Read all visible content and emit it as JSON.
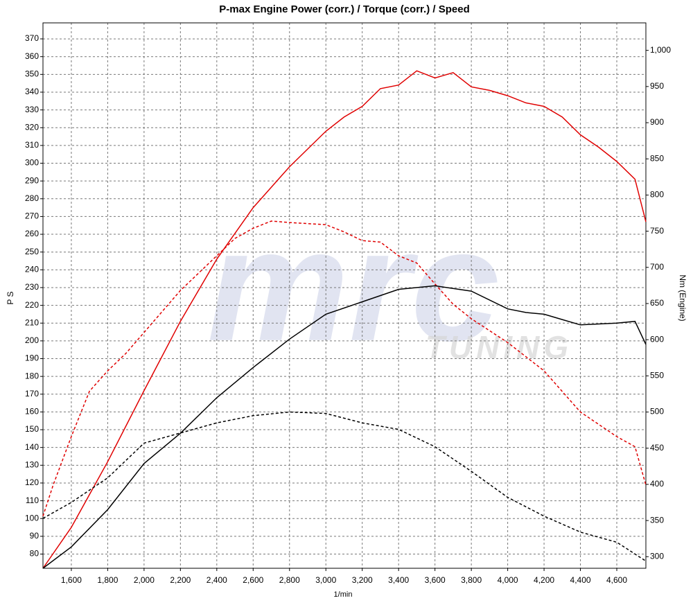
{
  "chart_data": {
    "type": "line",
    "title": "P-max Engine Power (corr.) / Torque (corr.) / Speed",
    "xlabel": "1/min",
    "ylabel": "P S",
    "y2label": "Nm (Engine)",
    "watermark": "mrc",
    "watermark_sub": "TUNING",
    "xlim": [
      1444,
      4760
    ],
    "ylim": [
      72,
      379
    ],
    "y2lim": [
      284,
      1038
    ],
    "xticks": [
      {
        "value": 1600,
        "label": "1,600"
      },
      {
        "value": 1800,
        "label": "1,800"
      },
      {
        "value": 2000,
        "label": "2,000"
      },
      {
        "value": 2200,
        "label": "2,200"
      },
      {
        "value": 2400,
        "label": "2,400"
      },
      {
        "value": 2600,
        "label": "2,600"
      },
      {
        "value": 2800,
        "label": "2,800"
      },
      {
        "value": 3000,
        "label": "3,000"
      },
      {
        "value": 3200,
        "label": "3,200"
      },
      {
        "value": 3400,
        "label": "3,400"
      },
      {
        "value": 3600,
        "label": "3,600"
      },
      {
        "value": 3800,
        "label": "3,800"
      },
      {
        "value": 4000,
        "label": "4,000"
      },
      {
        "value": 4200,
        "label": "4,200"
      },
      {
        "value": 4400,
        "label": "4,400"
      },
      {
        "value": 4600,
        "label": "4,600"
      }
    ],
    "yticks": [
      80,
      90,
      100,
      110,
      120,
      130,
      140,
      150,
      160,
      170,
      180,
      190,
      200,
      210,
      220,
      230,
      240,
      250,
      260,
      270,
      280,
      290,
      300,
      310,
      320,
      330,
      340,
      350,
      360,
      370
    ],
    "y2ticks": [
      300,
      350,
      400,
      450,
      500,
      550,
      600,
      650,
      700,
      750,
      800,
      850,
      900,
      950,
      {
        "value": 1000,
        "label": "1,000"
      }
    ],
    "grid": true,
    "series": [
      {
        "color": "#e00000",
        "style": "solid",
        "axis": "y",
        "x": [
          1444,
          1600,
          1800,
          2000,
          2200,
          2400,
          2600,
          2800,
          3000,
          3100,
          3200,
          3300,
          3400,
          3500,
          3600,
          3700,
          3800,
          3900,
          4000,
          4100,
          4200,
          4300,
          4400,
          4500,
          4600,
          4700,
          4760
        ],
        "values": [
          72,
          95,
          132,
          172,
          211,
          246,
          275,
          298,
          318,
          326,
          332,
          342,
          344,
          352,
          348,
          351,
          343,
          341,
          338,
          334,
          332,
          326,
          316,
          309,
          301,
          291,
          267
        ]
      },
      {
        "color": "#e00000",
        "style": "dashed",
        "axis": "y2",
        "x": [
          1444,
          1500,
          1600,
          1700,
          1800,
          1900,
          2000,
          2200,
          2400,
          2500,
          2600,
          2700,
          2800,
          3000,
          3100,
          3200,
          3300,
          3400,
          3500,
          3600,
          3700,
          3800,
          4000,
          4200,
          4400,
          4600,
          4700,
          4760
        ],
        "values": [
          356,
          399,
          466,
          529,
          557,
          581,
          610,
          668,
          716,
          740,
          754,
          764,
          762,
          759,
          749,
          737,
          735,
          716,
          706,
          677,
          649,
          629,
          596,
          557,
          500,
          466,
          452,
          399
        ]
      },
      {
        "color": "#000000",
        "style": "solid",
        "axis": "y",
        "x": [
          1444,
          1600,
          1800,
          2000,
          2200,
          2400,
          2600,
          2800,
          3000,
          3200,
          3400,
          3600,
          3800,
          4000,
          4100,
          4200,
          4300,
          4400,
          4600,
          4700,
          4760
        ],
        "values": [
          72,
          84,
          105,
          131,
          148,
          168,
          185,
          201,
          215,
          222,
          229,
          231,
          228,
          218,
          216,
          215,
          212,
          209,
          210,
          211,
          198
        ]
      },
      {
        "color": "#000000",
        "style": "dashed",
        "axis": "y2",
        "x": [
          1444,
          1600,
          1800,
          2000,
          2200,
          2400,
          2600,
          2800,
          3000,
          3200,
          3400,
          3600,
          3800,
          4000,
          4200,
          4400,
          4600,
          4760
        ],
        "values": [
          353,
          375,
          409,
          457,
          471,
          485,
          495,
          500,
          498,
          485,
          476,
          452,
          418,
          382,
          356,
          334,
          320,
          294
        ]
      }
    ]
  }
}
